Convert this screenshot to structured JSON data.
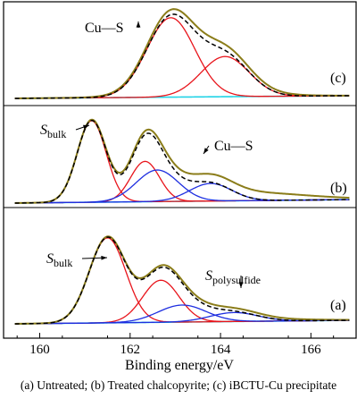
{
  "chart_data": {
    "type": "line",
    "xlabel": "Binding energy/eV",
    "xlim": [
      159.2,
      167.0
    ],
    "xticks": [
      160,
      162,
      164,
      166
    ],
    "colors": {
      "envelope": "#8b7d1a",
      "fit": "#000000",
      "bulk": "#e8141b",
      "blue": "#1f2fe0",
      "background": "#22d3e6"
    },
    "panels": [
      {
        "id": "a",
        "label": "(a)",
        "annotations": [
          {
            "text_main": "S",
            "text_sub": "bulk",
            "target": 161.7
          },
          {
            "text_main": "S",
            "text_sub": "polysulfide",
            "target": 163.2
          }
        ],
        "baseline": {
          "x": [
            159.4,
            166.9
          ],
          "y": [
            0.0,
            0.04
          ]
        },
        "peaks": [
          {
            "name": "S bulk 2p3/2",
            "color": "bulk",
            "center": 161.5,
            "height": 0.95,
            "fwhm": 0.95
          },
          {
            "name": "S bulk 2p1/2",
            "color": "bulk",
            "center": 162.68,
            "height": 0.47,
            "fwhm": 0.95
          },
          {
            "name": "S polysulfide 2p3/2",
            "color": "blue",
            "center": 163.15,
            "height": 0.19,
            "fwhm": 1.25
          },
          {
            "name": "S polysulfide 2p1/2",
            "color": "blue",
            "center": 164.3,
            "height": 0.1,
            "fwhm": 1.25
          }
        ],
        "envelope_extra": [
          {
            "center": 164.0,
            "height": 0.035,
            "fwhm": 3.4
          }
        ]
      },
      {
        "id": "b",
        "label": "(b)",
        "annotations": [
          {
            "text_main": "S",
            "text_sub": "bulk",
            "target": 161.2
          },
          {
            "text_main": "Cu—S",
            "text_sub": "",
            "target": 162.7
          }
        ],
        "baseline": {
          "x": [
            159.4,
            166.9
          ],
          "y": [
            0.0,
            0.04
          ]
        },
        "peaks": [
          {
            "name": "S bulk 2p3/2",
            "color": "bulk",
            "center": 161.15,
            "height": 0.93,
            "fwhm": 0.75
          },
          {
            "name": "S bulk 2p1/2",
            "color": "bulk",
            "center": 162.33,
            "height": 0.46,
            "fwhm": 0.75
          },
          {
            "name": "Cu-S 2p3/2",
            "color": "blue",
            "center": 162.6,
            "height": 0.36,
            "fwhm": 1.1
          },
          {
            "name": "Cu-S 2p1/2",
            "color": "blue",
            "center": 163.78,
            "height": 0.2,
            "fwhm": 1.1
          }
        ],
        "envelope_extra": [
          {
            "center": 164.3,
            "height": 0.1,
            "fwhm": 3.4
          }
        ]
      },
      {
        "id": "c",
        "label": "(c)",
        "annotations": [
          {
            "text_main": "Cu—S",
            "text_sub": "",
            "target": 162.7
          }
        ],
        "baseline": {
          "x": [
            159.4,
            166.9
          ],
          "y": [
            0.0,
            0.03
          ]
        },
        "peaks": [
          {
            "name": "Cu-S 2p3/2",
            "color": "bulk",
            "center": 162.9,
            "height": 0.87,
            "fwhm": 1.25
          },
          {
            "name": "Cu-S 2p1/2",
            "color": "bulk",
            "center": 164.1,
            "height": 0.44,
            "fwhm": 1.25
          }
        ],
        "envelope_extra": [
          {
            "center": 163.7,
            "height": 0.07,
            "fwhm": 2.6
          }
        ]
      }
    ]
  },
  "caption": "(a) Untreated; (b) Treated chalcopyrite; (c) iBCTU-Cu precipitate"
}
